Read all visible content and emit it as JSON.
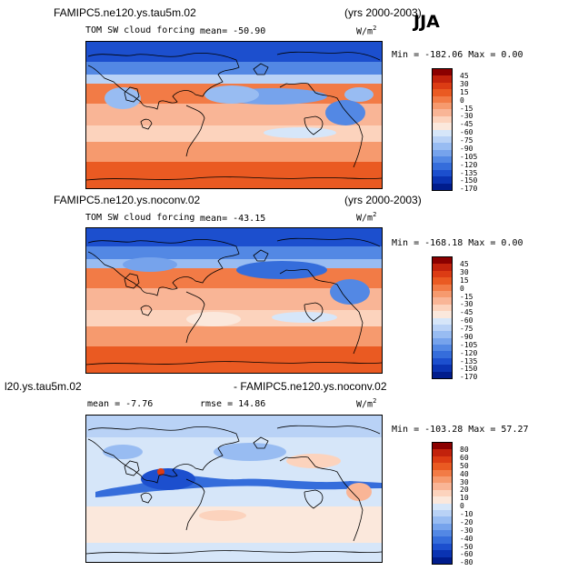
{
  "season": "JJA",
  "units_base": "W/m",
  "units_exp": "2",
  "panels": [
    {
      "case_title": "FAMIPC5.ne120.ys.tau5m.02",
      "years": "(yrs 2000-2003)",
      "variable": "TOM SW cloud forcing",
      "stat": "mean=  -50.90",
      "minmax": "Min = -182.06 Max =   0.00",
      "colorbar": {
        "labels": [
          "45",
          "30",
          "15",
          "0",
          "-15",
          "-30",
          "-45",
          "-60",
          "-75",
          "-90",
          "-105",
          "-120",
          "-135",
          "-150",
          "-170"
        ],
        "colors": [
          "#8b0000",
          "#c2220c",
          "#dc3c14",
          "#ea5a22",
          "#f27b46",
          "#f69a6e",
          "#f9b596",
          "#fcd3bd",
          "#fbe8dc",
          "#d6e6f9",
          "#b9d2f6",
          "#98bcf2",
          "#76a3ec",
          "#5388e4",
          "#356ddb",
          "#1c4fce",
          "#0a33b2",
          "#001c8c"
        ]
      }
    },
    {
      "case_title": "FAMIPC5.ne120.ys.noconv.02",
      "years": "(yrs 2000-2003)",
      "variable": "TOM SW cloud forcing",
      "stat": "mean= -43.15",
      "minmax": "Min = -168.18 Max =   0.00",
      "colorbar": {
        "labels": [
          "45",
          "30",
          "15",
          "0",
          "-15",
          "-30",
          "-45",
          "-60",
          "-75",
          "-90",
          "-105",
          "-120",
          "-135",
          "-150",
          "-170"
        ],
        "colors": [
          "#8b0000",
          "#c2220c",
          "#dc3c14",
          "#ea5a22",
          "#f27b46",
          "#f69a6e",
          "#f9b596",
          "#fcd3bd",
          "#fbe8dc",
          "#d6e6f9",
          "#b9d2f6",
          "#98bcf2",
          "#76a3ec",
          "#5388e4",
          "#356ddb",
          "#1c4fce",
          "#0a33b2",
          "#001c8c"
        ]
      }
    },
    {
      "case_title_left": "l20.ys.tau5m.02",
      "case_title_right": "- FAMIPC5.ne120.ys.noconv.02",
      "stat_mean": "mean =  -7.76",
      "stat_rmse": "rmse =  14.86",
      "minmax": "Min = -103.28 Max =  57.27",
      "colorbar": {
        "labels": [
          "80",
          "60",
          "50",
          "40",
          "30",
          "20",
          "10",
          "0",
          "-10",
          "-20",
          "-30",
          "-40",
          "-50",
          "-60",
          "-80"
        ],
        "colors": [
          "#8b0000",
          "#c2220c",
          "#dc3c14",
          "#ea5a22",
          "#f27b46",
          "#f69a6e",
          "#f9b596",
          "#fcd3bd",
          "#fbe8dc",
          "#d6e6f9",
          "#b9d2f6",
          "#98bcf2",
          "#76a3ec",
          "#5388e4",
          "#356ddb",
          "#1c4fce",
          "#0a33b2",
          "#001c8c"
        ]
      }
    }
  ]
}
